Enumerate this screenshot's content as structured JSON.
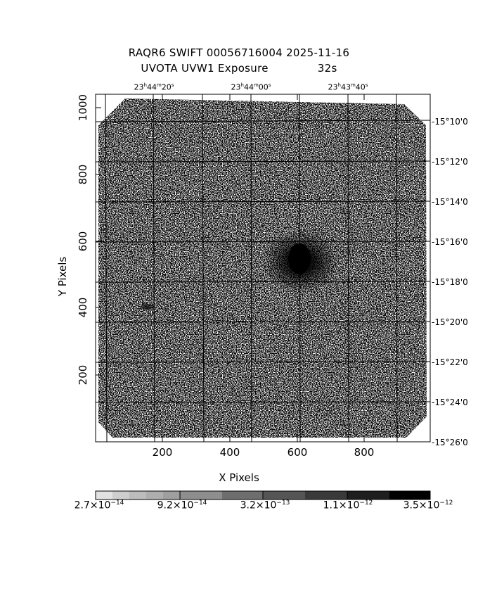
{
  "header": {
    "line1": "RAQR6 SWIFT 00056716004 2025-11-16",
    "line2_left": "UVOTA UVW1 Exposure",
    "line2_right": "32s"
  },
  "axes": {
    "xlabel": "X Pixels",
    "ylabel": "Y Pixels",
    "xticks": [
      "200",
      "400",
      "600",
      "800"
    ],
    "yticks": [
      "200",
      "400",
      "600",
      "800",
      "1000"
    ],
    "ra_ticks": [
      {
        "h": "23",
        "m": "44",
        "s": "20"
      },
      {
        "h": "23",
        "m": "44",
        "s": "00"
      },
      {
        "h": "23",
        "m": "43",
        "s": "40"
      }
    ],
    "dec_ticks": [
      "-15°10'0",
      "-15°12'0",
      "-15°14'0",
      "-15°16'0",
      "-15°18'0",
      "-15°20'0",
      "-15°22'0",
      "-15°24'0",
      "-15°26'0"
    ]
  },
  "colorbar": {
    "labels": [
      {
        "mant": "2.7",
        "exp": "−14"
      },
      {
        "mant": "9.2",
        "exp": "−14"
      },
      {
        "mant": "3.2",
        "exp": "−13"
      },
      {
        "mant": "1.1",
        "exp": "−12"
      },
      {
        "mant": "3.5",
        "exp": "−12"
      }
    ],
    "gray_levels": [
      "#e6e6e6",
      "#c4c4c4",
      "#a8a8a8",
      "#8c8c8c",
      "#707070",
      "#565656",
      "#3e3e3e",
      "#282828",
      "#141414",
      "#000000"
    ]
  }
}
